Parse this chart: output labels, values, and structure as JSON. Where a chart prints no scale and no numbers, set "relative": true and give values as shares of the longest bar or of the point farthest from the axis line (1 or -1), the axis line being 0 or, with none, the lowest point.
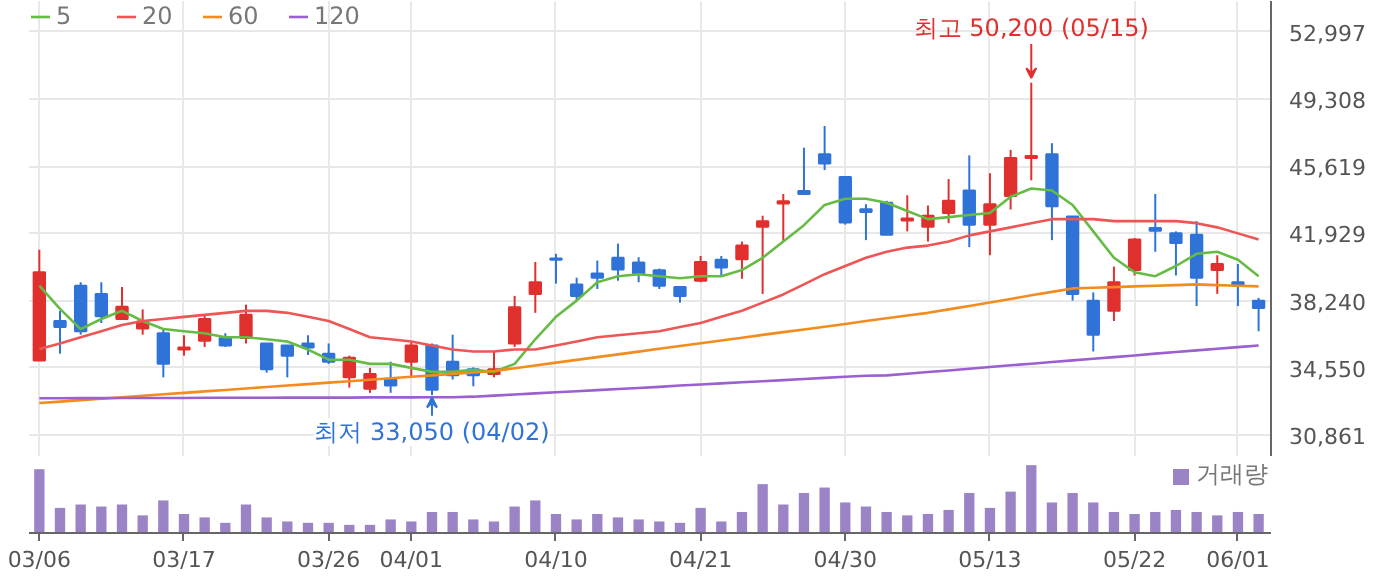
{
  "chart_data": [
    {
      "type": "candlestick",
      "categories": [
        null,
        null,
        null,
        null,
        null,
        null,
        null,
        null,
        null,
        null,
        null,
        null,
        null,
        null,
        null,
        null,
        null,
        null,
        null,
        null,
        null,
        null,
        null,
        null,
        null,
        null,
        null,
        null,
        null,
        null,
        null,
        null,
        null,
        null,
        null,
        null,
        null,
        null,
        null,
        null,
        null,
        null,
        null,
        null,
        null,
        null,
        null,
        null,
        null,
        null,
        null,
        null,
        null,
        null,
        null,
        null,
        null,
        null,
        null,
        null
      ],
      "ohlc": [
        [
          34960,
          41030,
          34960,
          39800
        ],
        [
          37120,
          37680,
          35330,
          36790
        ],
        [
          39060,
          39250,
          36370,
          36560
        ],
        [
          38610,
          39250,
          37010,
          37380
        ],
        [
          37230,
          38990,
          37200,
          37900
        ],
        [
          36710,
          37760,
          36370,
          37090
        ],
        [
          36450,
          36640,
          34030,
          34770
        ],
        [
          35560,
          36340,
          35220,
          35670
        ],
        [
          36040,
          37460,
          35700,
          37230
        ],
        [
          36190,
          36450,
          35700,
          35780
        ],
        [
          36190,
          38020,
          35890,
          37460
        ],
        [
          35890,
          35890,
          34290,
          34470
        ],
        [
          35780,
          35780,
          34030,
          35220
        ],
        [
          35890,
          36340,
          35260,
          35670
        ],
        [
          35330,
          35890,
          34770,
          34890
        ],
        [
          34030,
          35220,
          33470,
          35110
        ],
        [
          33400,
          34550,
          33180,
          34220
        ],
        [
          33910,
          34890,
          33180,
          33580
        ],
        [
          34890,
          35970,
          34100,
          35780
        ],
        [
          35780,
          35890,
          33050,
          33350
        ],
        [
          34890,
          36370,
          33910,
          34140
        ],
        [
          34470,
          34580,
          33540,
          34140
        ],
        [
          34220,
          35450,
          34030,
          34470
        ],
        [
          35890,
          38500,
          35700,
          37870
        ],
        [
          38610,
          40360,
          37570,
          39250
        ],
        [
          40550,
          40810,
          39170,
          40480
        ],
        [
          39130,
          39500,
          38210,
          38500
        ],
        [
          39730,
          40440,
          38880,
          39500
        ],
        [
          40590,
          41370,
          39330,
          39950
        ],
        [
          40330,
          40620,
          39250,
          39730
        ],
        [
          39910,
          40000,
          38880,
          39060
        ],
        [
          38990,
          38990,
          38130,
          38500
        ],
        [
          39330,
          40690,
          39250,
          40360
        ],
        [
          40480,
          40690,
          39550,
          40060
        ],
        [
          40510,
          41480,
          39440,
          41260
        ],
        [
          42300,
          42900,
          38610,
          42600
        ],
        [
          43570,
          44090,
          41480,
          43690
        ],
        [
          44250,
          46630,
          44090,
          44090
        ],
        [
          46270,
          47820,
          45400,
          45770
        ],
        [
          45030,
          45030,
          42410,
          42530
        ],
        [
          43260,
          43530,
          41560,
          43100
        ],
        [
          43610,
          43720,
          41850,
          41850
        ],
        [
          42630,
          44020,
          42040,
          42750
        ],
        [
          42300,
          43460,
          41480,
          42900
        ],
        [
          43050,
          44910,
          42490,
          43720
        ],
        [
          44280,
          46210,
          41180,
          42410
        ],
        [
          42410,
          45230,
          40730,
          43530
        ],
        [
          43980,
          46510,
          43240,
          46060
        ],
        [
          46060,
          50200,
          44840,
          46180
        ],
        [
          46270,
          46880,
          41560,
          43420
        ],
        [
          42860,
          42860,
          38240,
          38610
        ],
        [
          38240,
          38690,
          35450,
          36370
        ],
        [
          37680,
          40110,
          37120,
          39250
        ],
        [
          39920,
          41670,
          39620,
          41590
        ],
        [
          42230,
          44090,
          40920,
          42070
        ],
        [
          41930,
          42040,
          39620,
          41400
        ],
        [
          41850,
          42600,
          37940,
          39500
        ],
        [
          39920,
          40730,
          38610,
          40250
        ],
        [
          39250,
          40250,
          37940,
          39060
        ],
        [
          38240,
          38390,
          36560,
          37830
        ]
      ],
      "colors": [
        "#e0302d",
        "#2f73d8",
        "#2f73d8",
        "#2f73d8",
        "#e0302d",
        "#e0302d",
        "#2f73d8",
        "#e0302d",
        "#e0302d",
        "#2f73d8",
        "#e0302d",
        "#2f73d8",
        "#2f73d8",
        "#2f73d8",
        "#2f73d8",
        "#e0302d",
        "#e0302d",
        "#2f73d8",
        "#e0302d",
        "#2f73d8",
        "#2f73d8",
        "#2f73d8",
        "#e0302d",
        "#e0302d",
        "#e0302d",
        "#2f73d8",
        "#2f73d8",
        "#2f73d8",
        "#2f73d8",
        "#2f73d8",
        "#2f73d8",
        "#2f73d8",
        "#e0302d",
        "#2f73d8",
        "#e0302d",
        "#e0302d",
        "#e0302d",
        "#2f73d8",
        "#2f73d8",
        "#2f73d8",
        "#2f73d8",
        "#2f73d8",
        "#e0302d",
        "#e0302d",
        "#e0302d",
        "#2f73d8",
        "#e0302d",
        "#e0302d",
        "#e0302d",
        "#2f73d8",
        "#2f73d8",
        "#2f73d8",
        "#e0302d",
        "#e0302d",
        "#2f73d8",
        "#2f73d8",
        "#2f73d8",
        "#e0302d",
        "#2f73d8",
        "#2f73d8"
      ],
      "series": [
        {
          "type": "line",
          "name": "5",
          "color": "#66bb44",
          "values": [
            39060,
            37790,
            36680,
            37230,
            37680,
            37120,
            36680,
            36560,
            36450,
            36230,
            36230,
            36120,
            36000,
            35560,
            35000,
            35000,
            34770,
            34770,
            34550,
            34330,
            34330,
            34440,
            34330,
            34770,
            36120,
            37350,
            38240,
            39250,
            39580,
            39690,
            39580,
            39470,
            39580,
            39580,
            39920,
            40590,
            41480,
            42380,
            43490,
            43830,
            43830,
            43610,
            43160,
            42710,
            42820,
            42940,
            43050,
            43940,
            44390,
            44280,
            43490,
            42040,
            40590,
            39800,
            39580,
            40140,
            40810,
            40920,
            40480,
            39580
          ]
        },
        {
          "type": "line",
          "name": "20",
          "color": "#ee5555",
          "values": [
            35590,
            35890,
            36230,
            36560,
            36900,
            37120,
            37230,
            37350,
            37460,
            37570,
            37680,
            37680,
            37570,
            37350,
            37120,
            36680,
            36230,
            36120,
            36000,
            35780,
            35560,
            35450,
            35450,
            35560,
            35560,
            35780,
            36000,
            36230,
            36340,
            36450,
            36560,
            36790,
            37010,
            37350,
            37680,
            38130,
            38580,
            39130,
            39690,
            40140,
            40590,
            40920,
            41150,
            41260,
            41480,
            41820,
            42040,
            42260,
            42490,
            42710,
            42710,
            42710,
            42600,
            42600,
            42600,
            42600,
            42490,
            42260,
            41930,
            41590
          ]
        },
        {
          "type": "line",
          "name": "60",
          "color": "#f28c1e",
          "values": [
            32620,
            32700,
            32780,
            32860,
            32940,
            33020,
            33100,
            33180,
            33260,
            33340,
            33420,
            33500,
            33580,
            33660,
            33740,
            33820,
            33900,
            33980,
            34060,
            34140,
            34220,
            34300,
            34380,
            34530,
            34680,
            34840,
            34990,
            35140,
            35290,
            35440,
            35600,
            35750,
            35900,
            36050,
            36200,
            36360,
            36510,
            36660,
            36810,
            36960,
            37120,
            37270,
            37420,
            37570,
            37760,
            37950,
            38140,
            38330,
            38530,
            38720,
            38910,
            38950,
            38980,
            39020,
            39060,
            39090,
            39130,
            39090,
            39060,
            39020
          ]
        },
        {
          "type": "line",
          "name": "120",
          "color": "#9b5fd0",
          "values": [
            32880,
            32880,
            32890,
            32890,
            32900,
            32900,
            32900,
            32900,
            32910,
            32910,
            32910,
            32910,
            32920,
            32920,
            32920,
            32920,
            32930,
            32930,
            32930,
            32940,
            32940,
            32970,
            33030,
            33090,
            33150,
            33210,
            33270,
            33330,
            33390,
            33450,
            33510,
            33580,
            33640,
            33700,
            33760,
            33820,
            33880,
            33940,
            34000,
            34060,
            34120,
            34140,
            34230,
            34320,
            34410,
            34500,
            34600,
            34690,
            34780,
            34870,
            34960,
            35050,
            35140,
            35230,
            35330,
            35420,
            35510,
            35600,
            35690,
            35780
          ]
        }
      ],
      "ylim": [
        29660,
        54680
      ],
      "yticks": [
        {
          "value": 30861,
          "label": "30,861"
        },
        {
          "value": 34550,
          "label": "34,550"
        },
        {
          "value": 38240,
          "label": "38,240"
        },
        {
          "value": 41929,
          "label": "41,929"
        },
        {
          "value": 45619,
          "label": "45,619"
        },
        {
          "value": 49308,
          "label": "49,308"
        },
        {
          "value": 52997,
          "label": "52,997"
        }
      ],
      "annotations": [
        {
          "text": "최고 50,200 (05/15)",
          "y": 50200
        },
        {
          "text": "최저 33,050 (04/02)",
          "y": 33050
        }
      ],
      "grid": true,
      "legend": "top left",
      "marker": "none",
      "line_style": "solid"
    },
    {
      "type": "bar",
      "relative": true,
      "categories": [
        "03/06",
        null,
        null,
        null,
        null,
        null,
        null,
        "03/17",
        null,
        null,
        null,
        null,
        null,
        null,
        "03/26",
        null,
        null,
        null,
        "04/01",
        null,
        null,
        null,
        null,
        null,
        null,
        "04/10",
        null,
        null,
        null,
        null,
        null,
        null,
        "04/21",
        null,
        null,
        null,
        null,
        null,
        null,
        "04/30",
        null,
        null,
        null,
        null,
        null,
        null,
        "05/13",
        null,
        null,
        null,
        null,
        null,
        null,
        "05/22",
        null,
        null,
        null,
        null,
        "06/01",
        null
      ],
      "series": [
        {
          "name": "거래량",
          "color": "#9b84c6",
          "values": [
            0.94,
            0.37,
            0.42,
            0.39,
            0.42,
            0.26,
            0.48,
            0.28,
            0.23,
            0.15,
            0.42,
            0.23,
            0.17,
            0.15,
            0.15,
            0.12,
            0.12,
            0.2,
            0.17,
            0.31,
            0.31,
            0.2,
            0.17,
            0.39,
            0.48,
            0.28,
            0.2,
            0.28,
            0.23,
            0.2,
            0.17,
            0.15,
            0.37,
            0.17,
            0.31,
            0.72,
            0.42,
            0.59,
            0.67,
            0.45,
            0.39,
            0.31,
            0.26,
            0.28,
            0.34,
            0.59,
            0.37,
            0.61,
            1,
            0.45,
            0.59,
            0.45,
            0.31,
            0.28,
            0.31,
            0.34,
            0.31,
            0.26,
            0.31,
            0.28
          ]
        }
      ],
      "grid": false,
      "legend": "top right"
    }
  ]
}
